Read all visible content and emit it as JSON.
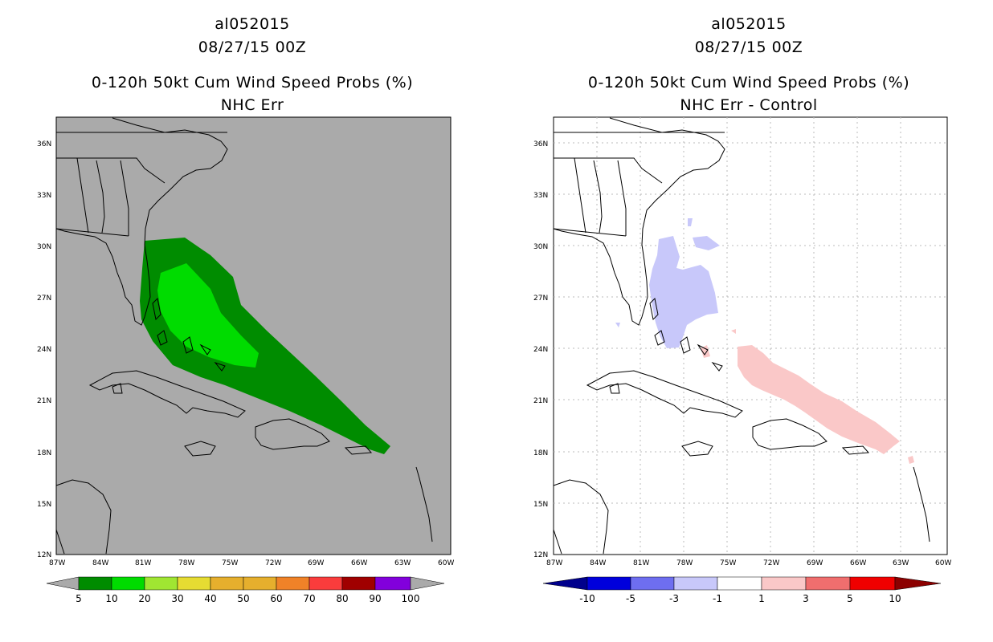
{
  "left_panel": {
    "storm_id": "al052015",
    "datetime": "08/27/15 00Z",
    "product": "0-120h 50kt Cum Wind Speed Probs (%)",
    "subtitle": "NHC Err",
    "colorbar": {
      "labels": [
        "5",
        "10",
        "20",
        "30",
        "40",
        "50",
        "60",
        "70",
        "80",
        "90",
        "100"
      ],
      "colors": [
        "#008c00",
        "#00dc00",
        "#a0e632",
        "#e6dc32",
        "#e6af2d",
        "#f08228",
        "#fa3c3c",
        "#a00000",
        "#a000c8",
        "#8200dc"
      ]
    }
  },
  "right_panel": {
    "storm_id": "al052015",
    "datetime": "08/27/15 00Z",
    "product": "0-120h 50kt Cum Wind Speed Probs (%)",
    "subtitle": "NHC Err - Control",
    "colorbar": {
      "labels": [
        "-10",
        "-5",
        "-3",
        "-1",
        "1",
        "3",
        "5",
        "10"
      ],
      "colors": [
        "#0000dc",
        "#6e6ef0",
        "#c8c8fa",
        "#ffffff",
        "#fac8c8",
        "#f06e6e",
        "#f00000"
      ],
      "end_colors": [
        "#00008c",
        "#8c0000"
      ]
    }
  },
  "map": {
    "lat_labels": [
      "36N",
      "33N",
      "30N",
      "27N",
      "24N",
      "21N",
      "18N",
      "15N",
      "12N"
    ],
    "lon_labels": [
      "87W",
      "84W",
      "81W",
      "78W",
      "75W",
      "72W",
      "69W",
      "66W",
      "63W",
      "60W"
    ],
    "background_left": "#aaaaaa",
    "background_right": "#ffffff"
  }
}
